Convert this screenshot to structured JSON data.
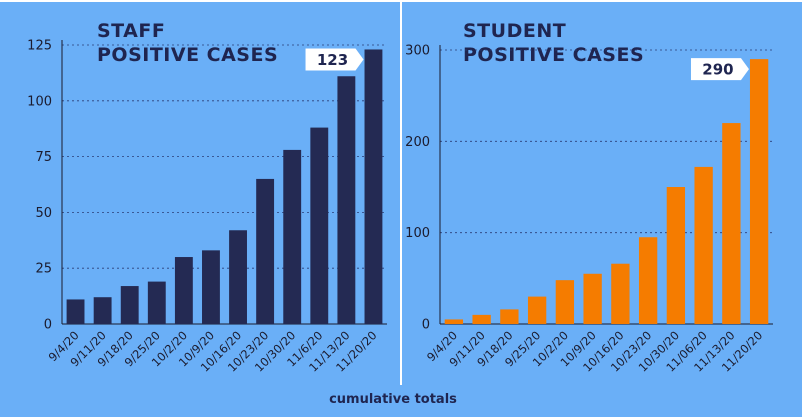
{
  "footer": "cumulative totals",
  "chart_data": [
    {
      "type": "bar",
      "title": "STAFF",
      "subtitle": "POSITIVE CASES",
      "categories": [
        "9/4/20",
        "9/11/20",
        "9/18/20",
        "9/25/20",
        "10/2/20",
        "10/9/20",
        "10/16/20",
        "10/23/20",
        "10/30/20",
        "11/6/20",
        "11/13/20",
        "11/20/20"
      ],
      "values": [
        11,
        12,
        17,
        19,
        30,
        33,
        42,
        65,
        78,
        88,
        111,
        123
      ],
      "ylim": [
        0,
        125
      ],
      "yticks": [
        0,
        25,
        50,
        75,
        100,
        125
      ],
      "bar_color": "#242a53",
      "callout": "123",
      "grid": true
    },
    {
      "type": "bar",
      "title": "STUDENT",
      "subtitle": "POSITIVE CASES",
      "categories": [
        "9/4/20",
        "9/11/20",
        "9/18/20",
        "9/25/20",
        "10/2/20",
        "10/9/20",
        "10/16/20",
        "10/23/20",
        "10/30/20",
        "11/06/20",
        "11/13/20",
        "11/20/20"
      ],
      "values": [
        5,
        10,
        16,
        30,
        48,
        55,
        66,
        95,
        150,
        172,
        220,
        290
      ],
      "ylim": [
        0,
        300
      ],
      "yticks": [
        0,
        100,
        200,
        300
      ],
      "bar_color": "#f57c00",
      "callout": "290",
      "grid": true
    }
  ]
}
